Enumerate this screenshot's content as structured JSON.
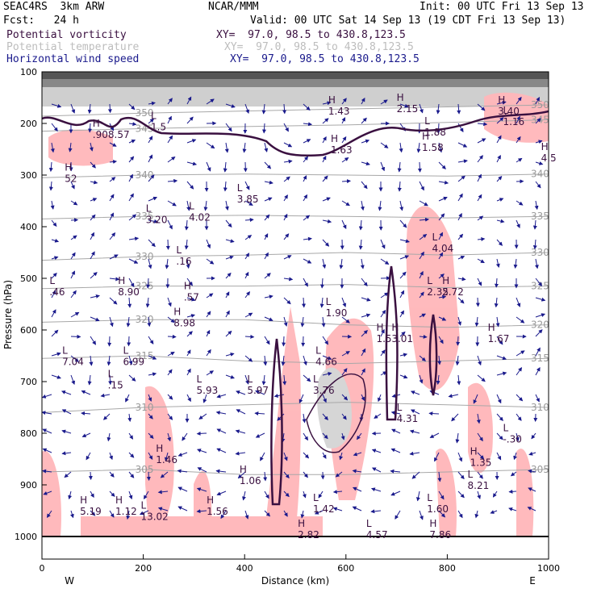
{
  "header": {
    "model": "SEAC4RS  3km ARW",
    "org": "NCAR/MMM",
    "init": "Init: 00 UTC Fri 13 Sep 13",
    "fcst": "Fcst:   24 h",
    "valid": "Valid: 00 UTC Sat 14 Sep 13 (19 CDT Fri 13 Sep 13)",
    "legend": [
      {
        "name": "Potential vorticity",
        "xy": "XY=  97.0, 98.5 to 430.8,123.5",
        "color": "#3a1040"
      },
      {
        "name": "Potential temperature",
        "xy": "XY=  97.0, 98.5 to 430.8,123.5",
        "color": "#bdbdbd"
      },
      {
        "name": "Horizontal wind speed",
        "xy": "XY=  97.0, 98.5 to 430.8,123.5",
        "color": "#1a1a8c"
      }
    ]
  },
  "chart_data": {
    "type": "cross-section",
    "xlabel": "Distance (km)",
    "ylabel": "Pressure (hPa)",
    "xlim": [
      0,
      1000
    ],
    "ylim": [
      1000,
      100
    ],
    "xticks": [
      0,
      200,
      400,
      600,
      800,
      1000
    ],
    "yticks": [
      100,
      200,
      300,
      400,
      500,
      600,
      700,
      800,
      900,
      1000
    ],
    "x_end_labels": {
      "left": "W",
      "right": "E"
    },
    "theta_contours": [
      {
        "label": "350",
        "levels": [
          [
            0,
            186
          ],
          [
            200,
            180
          ],
          [
            400,
            176
          ],
          [
            600,
            172
          ],
          [
            800,
            168
          ],
          [
            1000,
            164
          ]
        ]
      },
      {
        "label": "345",
        "levels": [
          [
            0,
            215
          ],
          [
            200,
            210
          ],
          [
            400,
            206
          ],
          [
            600,
            203
          ],
          [
            800,
            198
          ],
          [
            1000,
            193
          ]
        ]
      },
      {
        "label": "340",
        "levels": [
          [
            0,
            305
          ],
          [
            200,
            300
          ],
          [
            400,
            298
          ],
          [
            600,
            300
          ],
          [
            800,
            302
          ],
          [
            1000,
            298
          ]
        ]
      },
      {
        "label": "335",
        "levels": [
          [
            0,
            385
          ],
          [
            200,
            380
          ],
          [
            400,
            378
          ],
          [
            600,
            380
          ],
          [
            800,
            383
          ],
          [
            1000,
            380
          ]
        ]
      },
      {
        "label": "330",
        "levels": [
          [
            0,
            465
          ],
          [
            200,
            458
          ],
          [
            400,
            455
          ],
          [
            600,
            450
          ],
          [
            800,
            455
          ],
          [
            1000,
            450
          ]
        ]
      },
      {
        "label": "325",
        "levels": [
          [
            0,
            520
          ],
          [
            200,
            515
          ],
          [
            400,
            515
          ],
          [
            600,
            512
          ],
          [
            800,
            518
          ],
          [
            1000,
            515
          ]
        ]
      },
      {
        "label": "320",
        "levels": [
          [
            0,
            585
          ],
          [
            200,
            580
          ],
          [
            400,
            580
          ],
          [
            600,
            590
          ],
          [
            800,
            595
          ],
          [
            1000,
            590
          ]
        ]
      },
      {
        "label": "315",
        "levels": [
          [
            0,
            655
          ],
          [
            200,
            650
          ],
          [
            400,
            660
          ],
          [
            600,
            665
          ],
          [
            800,
            660
          ],
          [
            1000,
            655
          ]
        ]
      },
      {
        "label": "310",
        "levels": [
          [
            0,
            760
          ],
          [
            200,
            750
          ],
          [
            400,
            745
          ],
          [
            600,
            740
          ],
          [
            800,
            745
          ],
          [
            1000,
            750
          ]
        ]
      },
      {
        "label": "305",
        "levels": [
          [
            0,
            875
          ],
          [
            200,
            870
          ],
          [
            400,
            880
          ],
          [
            600,
            880
          ],
          [
            800,
            875
          ],
          [
            1000,
            870
          ]
        ]
      }
    ],
    "highs_lows": [
      {
        "k": "H",
        "x": 100,
        "p": 225,
        "v": ".908.57"
      },
      {
        "k": "H",
        "x": 45,
        "p": 310,
        "v": "52"
      },
      {
        "k": "L",
        "x": 215,
        "p": 210,
        "v": "1.5"
      },
      {
        "k": "L",
        "x": 205,
        "p": 390,
        "v": "3.20"
      },
      {
        "k": "L",
        "x": 290,
        "p": 385,
        "v": "4.02"
      },
      {
        "k": "L",
        "x": 385,
        "p": 350,
        "v": "3.85"
      },
      {
        "k": "L",
        "x": 265,
        "p": 470,
        "v": ".16"
      },
      {
        "k": "L",
        "x": 15,
        "p": 530,
        "v": ".46"
      },
      {
        "k": "H",
        "x": 150,
        "p": 530,
        "v": "8.90"
      },
      {
        "k": "H",
        "x": 280,
        "p": 540,
        "v": ".57"
      },
      {
        "k": "H",
        "x": 260,
        "p": 590,
        "v": "8.98"
      },
      {
        "k": "L",
        "x": 40,
        "p": 665,
        "v": "7.04"
      },
      {
        "k": "L",
        "x": 160,
        "p": 665,
        "v": "6.99"
      },
      {
        "k": "L",
        "x": 130,
        "p": 710,
        "v": ".15"
      },
      {
        "k": "L",
        "x": 305,
        "p": 720,
        "v": "5.93"
      },
      {
        "k": "L",
        "x": 405,
        "p": 720,
        "v": "5.97"
      },
      {
        "k": "H",
        "x": 225,
        "p": 855,
        "v": "1.46"
      },
      {
        "k": "H",
        "x": 390,
        "p": 895,
        "v": "1.06"
      },
      {
        "k": "H",
        "x": 325,
        "p": 955,
        "v": "1.56"
      },
      {
        "k": "H",
        "x": 75,
        "p": 955,
        "v": "5.19"
      },
      {
        "k": "H",
        "x": 145,
        "p": 955,
        "v": "1.12"
      },
      {
        "k": "L",
        "x": 195,
        "p": 965,
        "v": "13.02"
      },
      {
        "k": "H",
        "x": 570,
        "p": 255,
        "v": "1.63"
      },
      {
        "k": "H",
        "x": 565,
        "p": 180,
        "v": "1.43"
      },
      {
        "k": "H",
        "x": 750,
        "p": 250,
        "v": "1.58"
      },
      {
        "k": "L",
        "x": 755,
        "p": 220,
        "v": "1.88"
      },
      {
        "k": "H",
        "x": 700,
        "p": 175,
        "v": "2.15"
      },
      {
        "k": "L",
        "x": 770,
        "p": 445,
        "v": "4.04"
      },
      {
        "k": "L",
        "x": 760,
        "p": 530,
        "v": "2.35"
      },
      {
        "k": "H",
        "x": 790,
        "p": 530,
        "v": "2.72"
      },
      {
        "k": "L",
        "x": 560,
        "p": 570,
        "v": "1.90"
      },
      {
        "k": "H",
        "x": 660,
        "p": 620,
        "v": "1.5"
      },
      {
        "k": "H",
        "x": 690,
        "p": 620,
        "v": "3.01"
      },
      {
        "k": "H",
        "x": 880,
        "p": 620,
        "v": "1.67"
      },
      {
        "k": "L",
        "x": 540,
        "p": 665,
        "v": "4.66"
      },
      {
        "k": "L",
        "x": 535,
        "p": 720,
        "v": "3.76"
      },
      {
        "k": "L",
        "x": 700,
        "p": 775,
        "v": "4.31"
      },
      {
        "k": "L",
        "x": 910,
        "p": 815,
        "v": "-.30"
      },
      {
        "k": "H",
        "x": 845,
        "p": 860,
        "v": "1.35"
      },
      {
        "k": "L",
        "x": 840,
        "p": 905,
        "v": "8.21"
      },
      {
        "k": "L",
        "x": 760,
        "p": 950,
        "v": "1.60"
      },
      {
        "k": "L",
        "x": 535,
        "p": 950,
        "v": "1.42"
      },
      {
        "k": "H",
        "x": 505,
        "p": 1000,
        "v": "2.82"
      },
      {
        "k": "L",
        "x": 640,
        "p": 1000,
        "v": "4.57"
      },
      {
        "k": "H",
        "x": 765,
        "p": 1000,
        "v": "7.86"
      },
      {
        "k": "H",
        "x": 900,
        "p": 180,
        "v": "3.40"
      },
      {
        "k": "L",
        "x": 910,
        "p": 200,
        "v": "1.16"
      },
      {
        "k": "H",
        "x": 985,
        "p": 270,
        "v": "4.5"
      }
    ]
  }
}
